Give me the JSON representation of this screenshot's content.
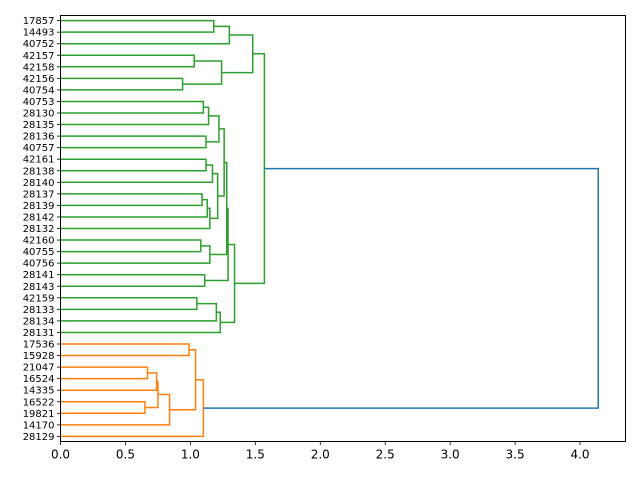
{
  "chart_data": {
    "type": "dendrogram",
    "orientation": "left",
    "xlim": [
      0,
      4.35
    ],
    "x_ticks": [
      0.0,
      0.5,
      1.0,
      1.5,
      2.0,
      2.5,
      3.0,
      3.5,
      4.0
    ],
    "x_tick_labels": [
      "0.0",
      "0.5",
      "1.0",
      "1.5",
      "2.0",
      "2.5",
      "3.0",
      "3.5",
      "4.0"
    ],
    "leaves": [
      "17857",
      "14493",
      "40752",
      "42157",
      "42158",
      "42156",
      "40754",
      "40753",
      "28130",
      "28135",
      "28136",
      "40757",
      "42161",
      "28138",
      "28140",
      "28137",
      "28139",
      "28142",
      "28132",
      "42160",
      "40755",
      "40756",
      "28141",
      "28143",
      "42159",
      "28133",
      "28134",
      "28131",
      "17536",
      "15928",
      "21047",
      "16524",
      "14335",
      "16522",
      "19821",
      "14170",
      "28129"
    ],
    "colors": {
      "cluster_1": "#2ca02c",
      "cluster_2": "#ff7f0e",
      "root": "#1f77b4"
    },
    "merges": [
      {
        "a": {
          "leaf": 0
        },
        "b": {
          "leaf": 1
        },
        "height": 1.18,
        "color": "cluster_1"
      },
      {
        "a": {
          "node": 0
        },
        "b": {
          "leaf": 2
        },
        "height": 1.3,
        "color": "cluster_1"
      },
      {
        "a": {
          "leaf": 3
        },
        "b": {
          "leaf": 4
        },
        "height": 1.03,
        "color": "cluster_1"
      },
      {
        "a": {
          "leaf": 5
        },
        "b": {
          "leaf": 6
        },
        "height": 0.94,
        "color": "cluster_1"
      },
      {
        "a": {
          "node": 2
        },
        "b": {
          "node": 3
        },
        "height": 1.24,
        "color": "cluster_1"
      },
      {
        "a": {
          "node": 1
        },
        "b": {
          "node": 4
        },
        "height": 1.48,
        "color": "cluster_1"
      },
      {
        "a": {
          "leaf": 7
        },
        "b": {
          "leaf": 8
        },
        "height": 1.1,
        "color": "cluster_1"
      },
      {
        "a": {
          "node": 6
        },
        "b": {
          "leaf": 9
        },
        "height": 1.14,
        "color": "cluster_1"
      },
      {
        "a": {
          "leaf": 10
        },
        "b": {
          "leaf": 11
        },
        "height": 1.12,
        "color": "cluster_1"
      },
      {
        "a": {
          "node": 7
        },
        "b": {
          "node": 8
        },
        "height": 1.22,
        "color": "cluster_1"
      },
      {
        "a": {
          "leaf": 12
        },
        "b": {
          "leaf": 13
        },
        "height": 1.12,
        "color": "cluster_1"
      },
      {
        "a": {
          "node": 10
        },
        "b": {
          "leaf": 14
        },
        "height": 1.17,
        "color": "cluster_1"
      },
      {
        "a": {
          "leaf": 15
        },
        "b": {
          "leaf": 16
        },
        "height": 1.09,
        "color": "cluster_1"
      },
      {
        "a": {
          "node": 12
        },
        "b": {
          "leaf": 17
        },
        "height": 1.13,
        "color": "cluster_1"
      },
      {
        "a": {
          "node": 13
        },
        "b": {
          "leaf": 18
        },
        "height": 1.15,
        "color": "cluster_1"
      },
      {
        "a": {
          "node": 11
        },
        "b": {
          "node": 14
        },
        "height": 1.21,
        "color": "cluster_1"
      },
      {
        "a": {
          "node": 9
        },
        "b": {
          "node": 15
        },
        "height": 1.26,
        "color": "cluster_1"
      },
      {
        "a": {
          "leaf": 19
        },
        "b": {
          "leaf": 20
        },
        "height": 1.08,
        "color": "cluster_1"
      },
      {
        "a": {
          "node": 17
        },
        "b": {
          "leaf": 21
        },
        "height": 1.15,
        "color": "cluster_1"
      },
      {
        "a": {
          "node": 16
        },
        "b": {
          "node": 18
        },
        "height": 1.28,
        "color": "cluster_1"
      },
      {
        "a": {
          "leaf": 22
        },
        "b": {
          "leaf": 23
        },
        "height": 1.11,
        "color": "cluster_1"
      },
      {
        "a": {
          "node": 19
        },
        "b": {
          "node": 20
        },
        "height": 1.29,
        "color": "cluster_1"
      },
      {
        "a": {
          "leaf": 24
        },
        "b": {
          "leaf": 25
        },
        "height": 1.05,
        "color": "cluster_1"
      },
      {
        "a": {
          "node": 22
        },
        "b": {
          "leaf": 26
        },
        "height": 1.2,
        "color": "cluster_1"
      },
      {
        "a": {
          "node": 23
        },
        "b": {
          "leaf": 27
        },
        "height": 1.23,
        "color": "cluster_1"
      },
      {
        "a": {
          "node": 21
        },
        "b": {
          "node": 24
        },
        "height": 1.34,
        "color": "cluster_1"
      },
      {
        "a": {
          "node": 5
        },
        "b": {
          "node": 25
        },
        "height": 1.57,
        "color": "cluster_1"
      },
      {
        "a": {
          "leaf": 28
        },
        "b": {
          "leaf": 29
        },
        "height": 0.99,
        "color": "cluster_2"
      },
      {
        "a": {
          "leaf": 30
        },
        "b": {
          "leaf": 31
        },
        "height": 0.67,
        "color": "cluster_2"
      },
      {
        "a": {
          "node": 28
        },
        "b": {
          "leaf": 32
        },
        "height": 0.74,
        "color": "cluster_2"
      },
      {
        "a": {
          "leaf": 33
        },
        "b": {
          "leaf": 34
        },
        "height": 0.65,
        "color": "cluster_2"
      },
      {
        "a": {
          "node": 29
        },
        "b": {
          "node": 30
        },
        "height": 0.75,
        "color": "cluster_2"
      },
      {
        "a": {
          "node": 31
        },
        "b": {
          "leaf": 35
        },
        "height": 0.84,
        "color": "cluster_2"
      },
      {
        "a": {
          "node": 27
        },
        "b": {
          "node": 32
        },
        "height": 1.04,
        "color": "cluster_2"
      },
      {
        "a": {
          "node": 33
        },
        "b": {
          "leaf": 36
        },
        "height": 1.1,
        "color": "cluster_2"
      },
      {
        "a": {
          "node": 26
        },
        "b": {
          "node": 34
        },
        "height": 4.14,
        "color": "root"
      }
    ]
  }
}
